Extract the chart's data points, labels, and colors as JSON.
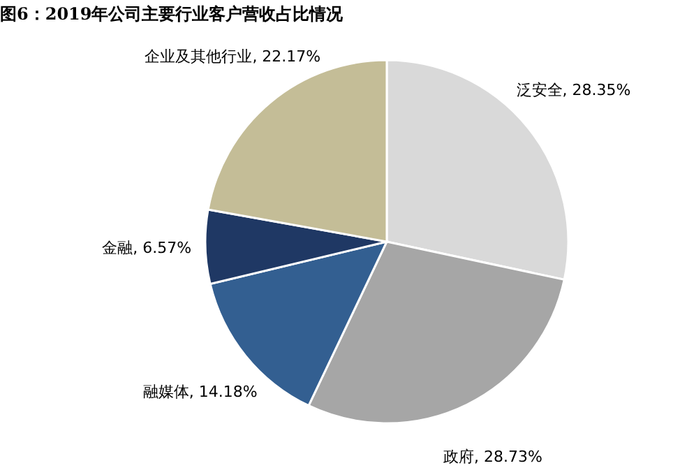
{
  "chart_data": {
    "type": "pie",
    "title": "图6：2019年公司主要行业客户营收占比情况",
    "categories": [
      "泛安全",
      "政府",
      "融媒体",
      "金融",
      "企业及其他行业"
    ],
    "values": [
      28.35,
      28.73,
      14.18,
      6.57,
      22.17
    ],
    "value_labels": [
      "28.35%",
      "28.73%",
      "14.18%",
      "6.57%",
      "22.17%"
    ],
    "colors": [
      "#d9d9d9",
      "#a6a6a6",
      "#335f91",
      "#1f3864",
      "#c4bd97"
    ],
    "legend": false
  }
}
